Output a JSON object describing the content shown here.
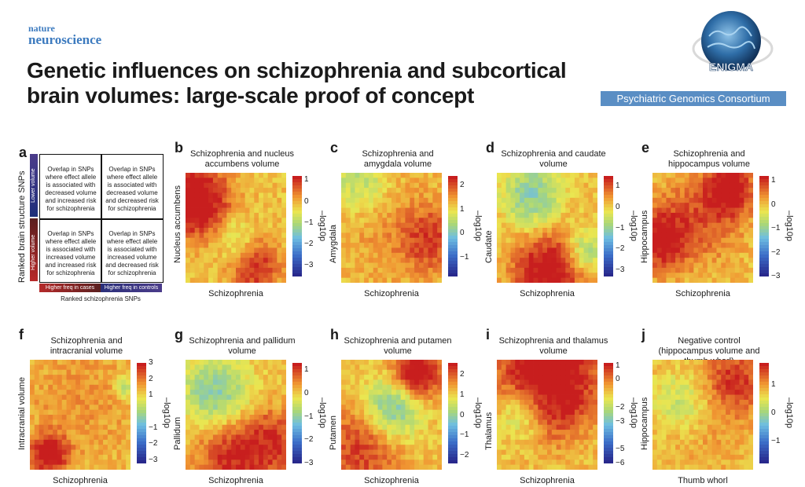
{
  "header": {
    "journal_line1": "nature",
    "journal_line2": "neuroscience",
    "title_line1": "Genetic influences on schizophrenia and subcortical",
    "title_line2": "brain volumes: large-scale proof of concept",
    "consortium": "Psychiatric Genomics Consortium",
    "logo_text": "ENIGMA"
  },
  "schematic": {
    "letter": "a",
    "y_axis_label": "Ranked brain structure SNPs",
    "lower_volume": "Lower volume",
    "higher_volume": "Higher volume",
    "x_axis_label": "Ranked schizophrenia SNPs",
    "higher_freq_cases": "Higher freq in cases",
    "higher_freq_controls": "Higher freq in controls",
    "quadrants": [
      "Overlap in SNPs where effect allele is associated with decreased volume and increased risk for schizophrenia",
      "Overlap in SNPs where effect allele is associated with decreased volume and decreased risk for schizophrenia",
      "Overlap in SNPs where effect allele is associated with increased volume and increased risk for schizophrenia",
      "Overlap in SNPs where effect allele is associated with increased volume and decreased risk for schizophrenia"
    ]
  },
  "colorbar_label": "–log10p",
  "chart_data": [
    {
      "type": "heatmap",
      "letter": "b",
      "title": "Schizophrenia and nucleus accumbens volume",
      "xlabel": "Schizophrenia",
      "ylabel": "Nucleus accumbens",
      "colorbar_ticks": [
        "1",
        "0",
        "−1",
        "−2",
        "−3"
      ],
      "clim": [
        -3.5,
        1.2
      ]
    },
    {
      "type": "heatmap",
      "letter": "c",
      "title": "Schizophrenia and amygdala volume",
      "xlabel": "Schizophrenia",
      "ylabel": "Amygdala",
      "colorbar_ticks": [
        "2",
        "1",
        "0",
        "−1"
      ],
      "clim": [
        -1.8,
        2.4
      ]
    },
    {
      "type": "heatmap",
      "letter": "d",
      "title": "Schizophrenia and caudate volume",
      "xlabel": "Schizophrenia",
      "ylabel": "Caudate",
      "colorbar_ticks": [
        "1",
        "0",
        "−1",
        "−2",
        "−3"
      ],
      "clim": [
        -3.3,
        1.5
      ]
    },
    {
      "type": "heatmap",
      "letter": "e",
      "title": "Schizophrenia and hippocampus volume",
      "xlabel": "Schizophrenia",
      "ylabel": "Hippocampus",
      "colorbar_ticks": [
        "1",
        "0",
        "−1",
        "−2",
        "−3"
      ],
      "clim": [
        -3,
        1.2
      ]
    },
    {
      "type": "heatmap",
      "letter": "f",
      "title": "Schizophrenia and intracranial volume",
      "xlabel": "Schizophrenia",
      "ylabel": "Intracranial volume",
      "colorbar_ticks": [
        "3",
        "2",
        "1",
        "−1",
        "−2",
        "−3"
      ],
      "clim": [
        -3.2,
        3
      ]
    },
    {
      "type": "heatmap",
      "letter": "g",
      "title": "Schizophrenia and pallidum volume",
      "xlabel": "Schizophrenia",
      "ylabel": "Pallidum",
      "colorbar_ticks": [
        "1",
        "0",
        "−1",
        "−2",
        "−3"
      ],
      "clim": [
        -3,
        1.3
      ]
    },
    {
      "type": "heatmap",
      "letter": "h",
      "title": "Schizophrenia and putamen volume",
      "xlabel": "Schizophrenia",
      "ylabel": "Putamen",
      "colorbar_ticks": [
        "2",
        "1",
        "0",
        "−1",
        "−2"
      ],
      "clim": [
        -2.4,
        2.6
      ]
    },
    {
      "type": "heatmap",
      "letter": "i",
      "title": "Schizophrenia and thalamus volume",
      "xlabel": "Schizophrenia",
      "ylabel": "Thalamus",
      "colorbar_ticks": [
        "1",
        "0",
        "−2",
        "−3",
        "−5",
        "−6"
      ],
      "clim": [
        -6,
        1.2
      ]
    },
    {
      "type": "heatmap",
      "letter": "j",
      "title": "Negative control (hippocampus volume and thumb whorl)",
      "xlabel": "Thumb whorl",
      "ylabel": "Hippocampus",
      "colorbar_ticks": [
        "1",
        "0",
        "−1"
      ],
      "clim": [
        -1.8,
        1.8
      ]
    }
  ]
}
